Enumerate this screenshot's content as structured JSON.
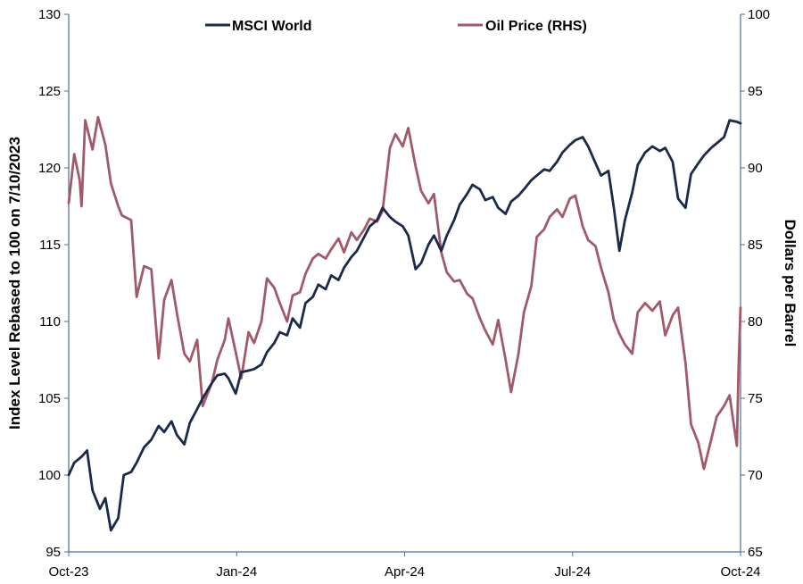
{
  "chart_data": {
    "type": "line",
    "legend": {
      "placement": "top-center"
    },
    "grid": false,
    "x_axis": {
      "tick_labels": [
        "Oct-23",
        "Jan-24",
        "Apr-24",
        "Jul-24",
        "Oct-24"
      ],
      "range": [
        "2023-10-10",
        "2024-10-10"
      ]
    },
    "y_left": {
      "label": "Index Level Rebased to 100 on 7/10/2023",
      "range": [
        95,
        130
      ],
      "ticks": [
        "95",
        "100",
        "105",
        "110",
        "115",
        "120",
        "125",
        "130"
      ]
    },
    "y_right": {
      "label": "Dollars per Barrel",
      "range": [
        65,
        100
      ],
      "ticks": [
        "65",
        "70",
        "75",
        "80",
        "85",
        "90",
        "95",
        "100"
      ]
    },
    "series": [
      {
        "name": "MSCI World",
        "axis": "left",
        "color": "#1b2a4a",
        "points": [
          [
            "2023-10-10",
            100.0
          ],
          [
            "2023-10-13",
            100.8
          ],
          [
            "2023-10-17",
            101.2
          ],
          [
            "2023-10-20",
            101.6
          ],
          [
            "2023-10-23",
            99.0
          ],
          [
            "2023-10-27",
            97.8
          ],
          [
            "2023-10-30",
            98.5
          ],
          [
            "2023-11-02",
            96.4
          ],
          [
            "2023-11-06",
            97.2
          ],
          [
            "2023-11-09",
            100.0
          ],
          [
            "2023-11-13",
            100.2
          ],
          [
            "2023-11-16",
            100.8
          ],
          [
            "2023-11-20",
            101.8
          ],
          [
            "2023-11-24",
            102.3
          ],
          [
            "2023-11-28",
            103.2
          ],
          [
            "2023-12-01",
            102.8
          ],
          [
            "2023-12-05",
            103.5
          ],
          [
            "2023-12-08",
            102.6
          ],
          [
            "2023-12-12",
            102.0
          ],
          [
            "2023-12-15",
            103.4
          ],
          [
            "2023-12-19",
            104.3
          ],
          [
            "2023-12-22",
            105.0
          ],
          [
            "2023-12-27",
            106.0
          ],
          [
            "2023-12-30",
            106.5
          ],
          [
            "2024-01-03",
            106.6
          ],
          [
            "2024-01-05",
            106.3
          ],
          [
            "2024-01-09",
            105.3
          ],
          [
            "2024-01-12",
            106.7
          ],
          [
            "2024-01-16",
            106.8
          ],
          [
            "2024-01-19",
            106.9
          ],
          [
            "2024-01-23",
            107.2
          ],
          [
            "2024-01-26",
            108.0
          ],
          [
            "2024-01-30",
            108.6
          ],
          [
            "2024-02-02",
            109.3
          ],
          [
            "2024-02-06",
            109.1
          ],
          [
            "2024-02-09",
            110.2
          ],
          [
            "2024-02-13",
            109.6
          ],
          [
            "2024-02-16",
            111.2
          ],
          [
            "2024-02-20",
            111.6
          ],
          [
            "2024-02-23",
            112.4
          ],
          [
            "2024-02-27",
            112.1
          ],
          [
            "2024-03-01",
            113.0
          ],
          [
            "2024-03-05",
            112.7
          ],
          [
            "2024-03-08",
            113.5
          ],
          [
            "2024-03-12",
            114.2
          ],
          [
            "2024-03-15",
            114.6
          ],
          [
            "2024-03-19",
            115.5
          ],
          [
            "2024-03-22",
            116.2
          ],
          [
            "2024-03-26",
            116.6
          ],
          [
            "2024-03-29",
            117.4
          ],
          [
            "2024-04-02",
            116.8
          ],
          [
            "2024-04-05",
            116.5
          ],
          [
            "2024-04-09",
            116.2
          ],
          [
            "2024-04-12",
            115.6
          ],
          [
            "2024-04-16",
            113.4
          ],
          [
            "2024-04-19",
            113.8
          ],
          [
            "2024-04-23",
            115.0
          ],
          [
            "2024-04-26",
            115.6
          ],
          [
            "2024-04-30",
            114.6
          ],
          [
            "2024-05-03",
            115.6
          ],
          [
            "2024-05-07",
            116.6
          ],
          [
            "2024-05-10",
            117.6
          ],
          [
            "2024-05-14",
            118.3
          ],
          [
            "2024-05-17",
            118.9
          ],
          [
            "2024-05-21",
            118.6
          ],
          [
            "2024-05-24",
            117.9
          ],
          [
            "2024-05-28",
            118.1
          ],
          [
            "2024-05-31",
            117.4
          ],
          [
            "2024-06-04",
            117.0
          ],
          [
            "2024-06-07",
            117.8
          ],
          [
            "2024-06-11",
            118.2
          ],
          [
            "2024-06-14",
            118.6
          ],
          [
            "2024-06-18",
            119.2
          ],
          [
            "2024-06-21",
            119.5
          ],
          [
            "2024-06-25",
            119.9
          ],
          [
            "2024-06-28",
            119.8
          ],
          [
            "2024-07-02",
            120.4
          ],
          [
            "2024-07-05",
            121.0
          ],
          [
            "2024-07-09",
            121.5
          ],
          [
            "2024-07-12",
            121.8
          ],
          [
            "2024-07-16",
            122.0
          ],
          [
            "2024-07-19",
            121.4
          ],
          [
            "2024-07-23",
            120.3
          ],
          [
            "2024-07-26",
            119.5
          ],
          [
            "2024-07-30",
            119.8
          ],
          [
            "2024-08-02",
            117.4
          ],
          [
            "2024-08-05",
            114.6
          ],
          [
            "2024-08-08",
            116.6
          ],
          [
            "2024-08-12",
            118.4
          ],
          [
            "2024-08-15",
            120.2
          ],
          [
            "2024-08-19",
            121.0
          ],
          [
            "2024-08-23",
            121.4
          ],
          [
            "2024-08-27",
            121.1
          ],
          [
            "2024-08-30",
            121.3
          ],
          [
            "2024-09-03",
            120.4
          ],
          [
            "2024-09-06",
            118.0
          ],
          [
            "2024-09-10",
            117.4
          ],
          [
            "2024-09-13",
            119.6
          ],
          [
            "2024-09-17",
            120.3
          ],
          [
            "2024-09-20",
            120.8
          ],
          [
            "2024-09-24",
            121.3
          ],
          [
            "2024-09-27",
            121.6
          ],
          [
            "2024-10-01",
            122.0
          ],
          [
            "2024-10-04",
            123.1
          ],
          [
            "2024-10-08",
            123.0
          ],
          [
            "2024-10-10",
            122.9
          ]
        ]
      },
      {
        "name": "Oil Price (RHS)",
        "axis": "right",
        "color": "#a05a6a",
        "points": [
          [
            "2023-10-10",
            87.7
          ],
          [
            "2023-10-13",
            90.9
          ],
          [
            "2023-10-16",
            89.2
          ],
          [
            "2023-10-17",
            87.5
          ],
          [
            "2023-10-19",
            93.1
          ],
          [
            "2023-10-23",
            91.2
          ],
          [
            "2023-10-26",
            93.3
          ],
          [
            "2023-10-30",
            91.5
          ],
          [
            "2023-11-02",
            89.0
          ],
          [
            "2023-11-06",
            87.5
          ],
          [
            "2023-11-08",
            86.9
          ],
          [
            "2023-11-13",
            86.6
          ],
          [
            "2023-11-16",
            81.6
          ],
          [
            "2023-11-20",
            83.6
          ],
          [
            "2023-11-24",
            83.4
          ],
          [
            "2023-11-28",
            77.6
          ],
          [
            "2023-12-01",
            81.4
          ],
          [
            "2023-12-05",
            82.7
          ],
          [
            "2023-12-08",
            80.5
          ],
          [
            "2023-12-12",
            77.9
          ],
          [
            "2023-12-15",
            77.4
          ],
          [
            "2023-12-19",
            78.8
          ],
          [
            "2023-12-22",
            74.5
          ],
          [
            "2023-12-27",
            76.0
          ],
          [
            "2023-12-30",
            77.5
          ],
          [
            "2024-01-03",
            78.8
          ],
          [
            "2024-01-05",
            80.2
          ],
          [
            "2024-01-09",
            78.0
          ],
          [
            "2024-01-12",
            76.3
          ],
          [
            "2024-01-16",
            79.3
          ],
          [
            "2024-01-19",
            78.6
          ],
          [
            "2024-01-23",
            80.0
          ],
          [
            "2024-01-26",
            82.8
          ],
          [
            "2024-01-30",
            82.2
          ],
          [
            "2024-02-02",
            81.2
          ],
          [
            "2024-02-06",
            80.0
          ],
          [
            "2024-02-09",
            81.7
          ],
          [
            "2024-02-13",
            81.9
          ],
          [
            "2024-02-16",
            83.1
          ],
          [
            "2024-02-20",
            84.1
          ],
          [
            "2024-02-23",
            84.4
          ],
          [
            "2024-02-27",
            84.1
          ],
          [
            "2024-03-01",
            84.7
          ],
          [
            "2024-03-05",
            85.4
          ],
          [
            "2024-03-08",
            84.5
          ],
          [
            "2024-03-12",
            85.8
          ],
          [
            "2024-03-15",
            85.3
          ],
          [
            "2024-03-19",
            86.0
          ],
          [
            "2024-03-22",
            86.7
          ],
          [
            "2024-03-26",
            86.5
          ],
          [
            "2024-03-29",
            87.2
          ],
          [
            "2024-04-02",
            91.3
          ],
          [
            "2024-04-05",
            92.2
          ],
          [
            "2024-04-09",
            91.4
          ],
          [
            "2024-04-12",
            92.6
          ],
          [
            "2024-04-16",
            90.1
          ],
          [
            "2024-04-19",
            88.5
          ],
          [
            "2024-04-23",
            87.7
          ],
          [
            "2024-04-26",
            88.3
          ],
          [
            "2024-04-30",
            84.5
          ],
          [
            "2024-05-03",
            83.2
          ],
          [
            "2024-05-07",
            82.6
          ],
          [
            "2024-05-10",
            82.7
          ],
          [
            "2024-05-14",
            81.8
          ],
          [
            "2024-05-17",
            81.5
          ],
          [
            "2024-05-21",
            80.2
          ],
          [
            "2024-05-24",
            79.4
          ],
          [
            "2024-05-28",
            78.5
          ],
          [
            "2024-05-31",
            80.1
          ],
          [
            "2024-06-04",
            77.5
          ],
          [
            "2024-06-07",
            75.4
          ],
          [
            "2024-06-11",
            77.9
          ],
          [
            "2024-06-14",
            80.6
          ],
          [
            "2024-06-18",
            82.3
          ],
          [
            "2024-06-21",
            85.5
          ],
          [
            "2024-06-25",
            86.0
          ],
          [
            "2024-06-28",
            86.8
          ],
          [
            "2024-07-02",
            87.3
          ],
          [
            "2024-07-05",
            86.8
          ],
          [
            "2024-07-09",
            88.0
          ],
          [
            "2024-07-12",
            88.2
          ],
          [
            "2024-07-16",
            86.2
          ],
          [
            "2024-07-19",
            85.3
          ],
          [
            "2024-07-23",
            84.9
          ],
          [
            "2024-07-26",
            83.5
          ],
          [
            "2024-07-30",
            81.9
          ],
          [
            "2024-08-02",
            80.1
          ],
          [
            "2024-08-05",
            79.2
          ],
          [
            "2024-08-08",
            78.5
          ],
          [
            "2024-08-12",
            77.9
          ],
          [
            "2024-08-15",
            80.6
          ],
          [
            "2024-08-19",
            81.2
          ],
          [
            "2024-08-23",
            80.7
          ],
          [
            "2024-08-27",
            81.3
          ],
          [
            "2024-08-30",
            79.1
          ],
          [
            "2024-09-03",
            80.4
          ],
          [
            "2024-09-06",
            80.9
          ],
          [
            "2024-09-10",
            77.3
          ],
          [
            "2024-09-13",
            73.3
          ],
          [
            "2024-09-17",
            72.1
          ],
          [
            "2024-09-20",
            70.4
          ],
          [
            "2024-09-24",
            72.3
          ],
          [
            "2024-09-27",
            73.8
          ],
          [
            "2024-10-01",
            74.5
          ],
          [
            "2024-10-04",
            75.2
          ],
          [
            "2024-10-08",
            71.9
          ],
          [
            "2024-10-09",
            77.2
          ],
          [
            "2024-10-10",
            80.9
          ]
        ]
      }
    ]
  }
}
